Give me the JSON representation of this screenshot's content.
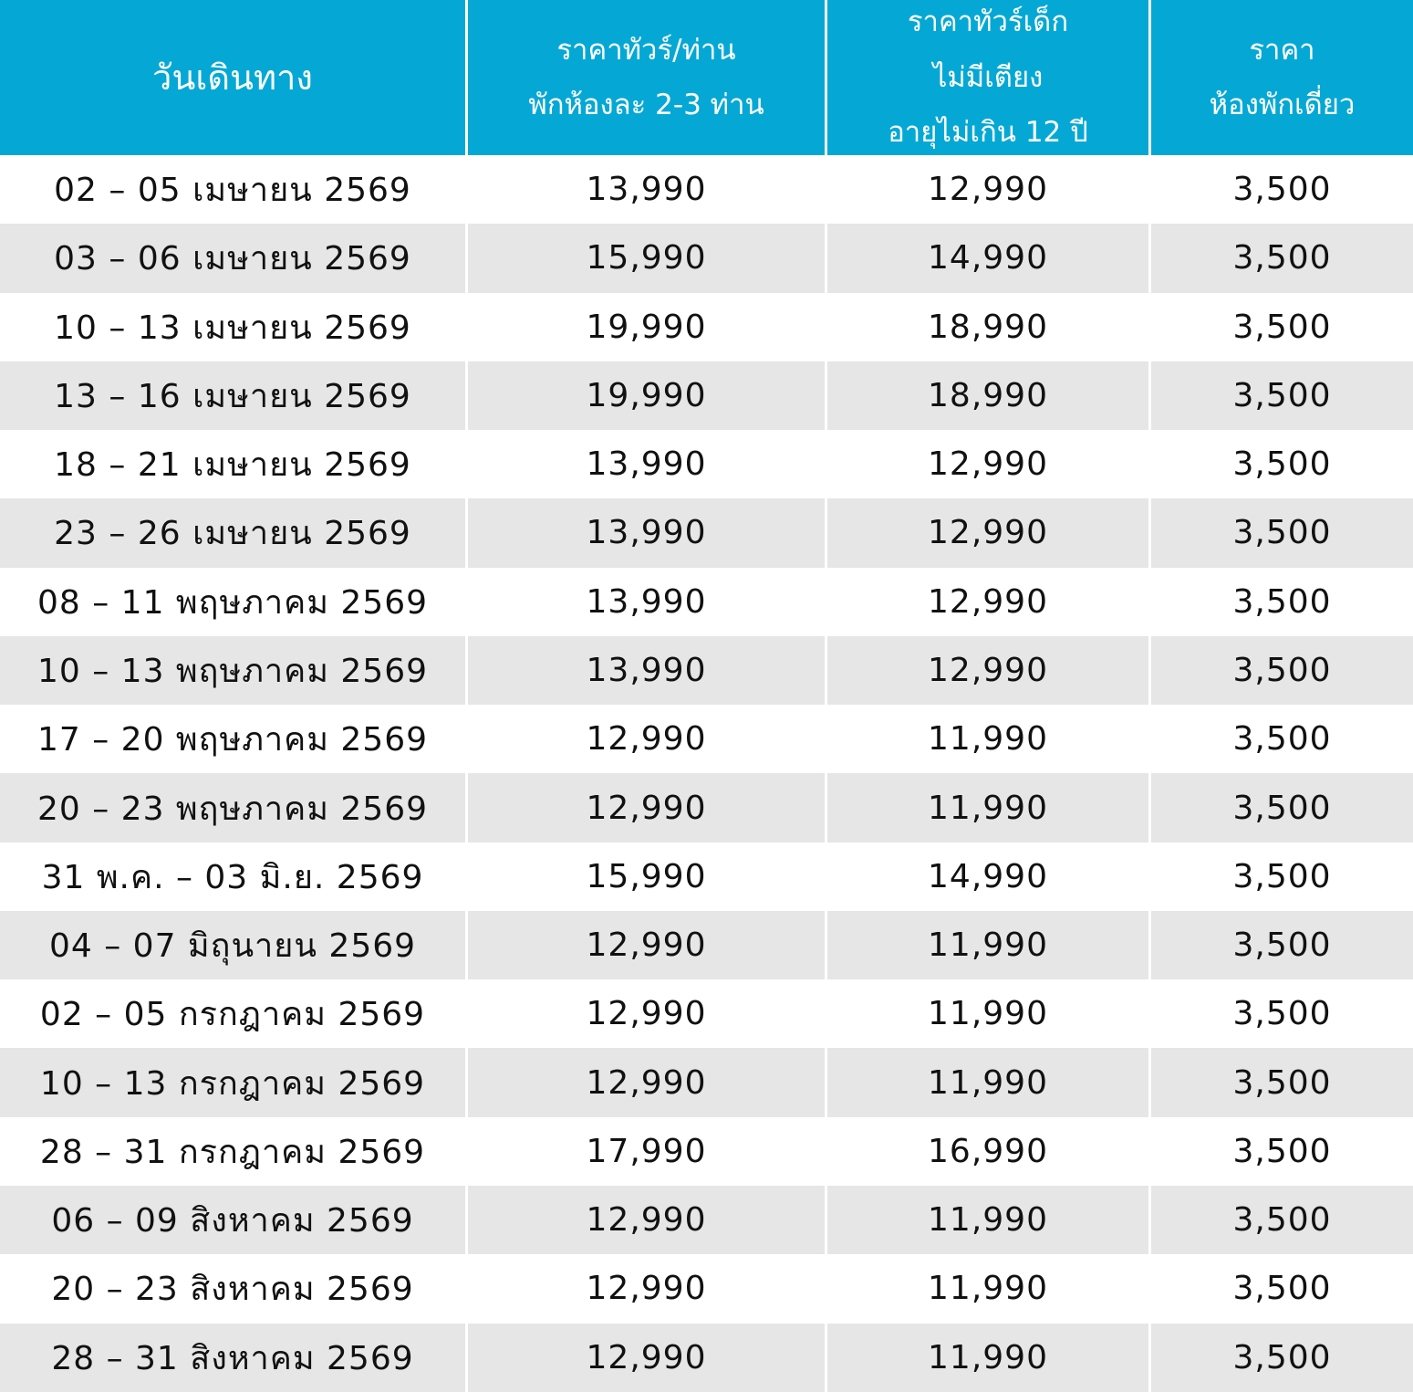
{
  "table": {
    "header": [
      [
        "วันเดินทาง"
      ],
      [
        "ราคาทัวร์/ท่าน",
        "พักห้องละ 2-3 ท่าน"
      ],
      [
        "ราคาทัวร์เด็ก",
        "ไม่มีเตียง",
        "อายุไม่เกิน 12 ปี"
      ],
      [
        "ราคา",
        "ห้องพักเดี่ยว"
      ]
    ],
    "rows": [
      [
        "02 – 05 เมษายน 2569",
        "13,990",
        "12,990",
        "3,500"
      ],
      [
        "03 – 06 เมษายน 2569",
        "15,990",
        "14,990",
        "3,500"
      ],
      [
        "10 – 13 เมษายน 2569",
        "19,990",
        "18,990",
        "3,500"
      ],
      [
        "13 – 16 เมษายน 2569",
        "19,990",
        "18,990",
        "3,500"
      ],
      [
        "18 – 21 เมษายน 2569",
        "13,990",
        "12,990",
        "3,500"
      ],
      [
        "23 – 26 เมษายน 2569",
        "13,990",
        "12,990",
        "3,500"
      ],
      [
        "08 – 11 พฤษภาคม 2569",
        "13,990",
        "12,990",
        "3,500"
      ],
      [
        "10 – 13 พฤษภาคม 2569",
        "13,990",
        "12,990",
        "3,500"
      ],
      [
        "17 – 20 พฤษภาคม 2569",
        "12,990",
        "11,990",
        "3,500"
      ],
      [
        "20 – 23 พฤษภาคม 2569",
        "12,990",
        "11,990",
        "3,500"
      ],
      [
        "31 พ.ค. – 03 มิ.ย. 2569",
        "15,990",
        "14,990",
        "3,500"
      ],
      [
        "04 – 07 มิถุนายน 2569",
        "12,990",
        "11,990",
        "3,500"
      ],
      [
        "02 – 05 กรกฎาคม 2569",
        "12,990",
        "11,990",
        "3,500"
      ],
      [
        "10 – 13 กรกฎาคม 2569",
        "12,990",
        "11,990",
        "3,500"
      ],
      [
        "28 – 31 กรกฎาคม 2569",
        "17,990",
        "16,990",
        "3,500"
      ],
      [
        "06 – 09 สิงหาคม 2569",
        "12,990",
        "11,990",
        "3,500"
      ],
      [
        "20 – 23 สิงหาคม 2569",
        "12,990",
        "11,990",
        "3,500"
      ],
      [
        "28 – 31 สิงหาคม 2569",
        "12,990",
        "11,990",
        "3,500"
      ]
    ]
  }
}
